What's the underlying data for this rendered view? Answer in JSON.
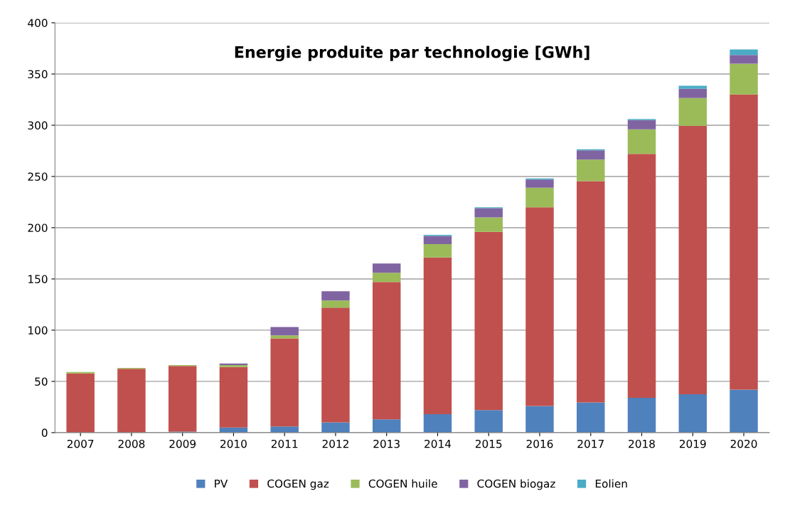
{
  "chart_data": {
    "type": "bar",
    "title": "Energie produite par technologie [GWh]",
    "stacked": true,
    "categories": [
      "2007",
      "2008",
      "2009",
      "2010",
      "2011",
      "2012",
      "2013",
      "2014",
      "2015",
      "2016",
      "2017",
      "2018",
      "2019",
      "2020"
    ],
    "series": [
      {
        "name": "PV",
        "color": "#4f81bd",
        "values": [
          null,
          null,
          1,
          5,
          6,
          10,
          13,
          18,
          22,
          26,
          29.5,
          34,
          37.5,
          42
        ]
      },
      {
        "name": "COGEN gaz",
        "color": "#c0504d",
        "values": [
          57.7,
          62.2,
          64,
          59,
          86,
          112,
          134,
          153,
          174,
          194,
          216,
          238,
          262,
          288
        ]
      },
      {
        "name": "COGEN huile",
        "color": "#9bbb59",
        "values": [
          1.5,
          1,
          1,
          2,
          3,
          7,
          9,
          13,
          14,
          19,
          21,
          24,
          27,
          30
        ]
      },
      {
        "name": "COGEN biogaz",
        "color": "#8064a2",
        "values": [
          0,
          0,
          0,
          1.5,
          8,
          9,
          9,
          8,
          9,
          8,
          9,
          9,
          9,
          8.5
        ]
      },
      {
        "name": "Eolien",
        "color": "#4bacc6",
        "values": [
          0,
          0,
          0,
          0,
          0,
          0,
          0,
          1,
          1,
          1,
          1,
          1,
          3,
          5.5
        ]
      }
    ],
    "ylim": [
      0,
      400
    ],
    "yticks": [
      0,
      50,
      100,
      150,
      200,
      250,
      300,
      350,
      400
    ],
    "grid": "y",
    "legend": "bottom"
  }
}
